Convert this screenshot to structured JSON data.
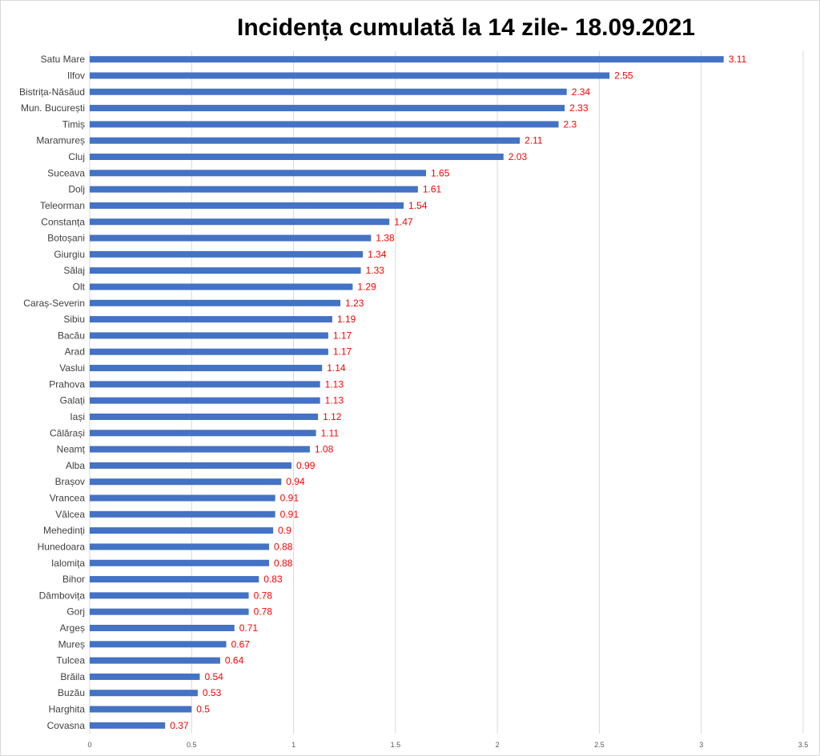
{
  "chart_data": {
    "type": "bar",
    "orientation": "horizontal",
    "title": "Incidența cumulată la 14 zile- 18.09.2021",
    "categories": [
      "Satu Mare",
      "Ilfov",
      "Bistrița-Năsăud",
      "Mun. București",
      "Timiș",
      "Maramureș",
      "Cluj",
      "Suceava",
      "Dolj",
      "Teleorman",
      "Constanța",
      "Botoșani",
      "Giurgiu",
      "Sălaj",
      "Olt",
      "Caraș-Severin",
      "Sibiu",
      "Bacău",
      "Arad",
      "Vaslui",
      "Prahova",
      "Galați",
      "Iași",
      "Călărași",
      "Neamț",
      "Alba",
      "Brașov",
      "Vrancea",
      "Vâlcea",
      "Mehedinți",
      "Hunedoara",
      "Ialomița",
      "Bihor",
      "Dâmbovița",
      "Gorj",
      "Argeș",
      "Mureș",
      "Tulcea",
      "Brăila",
      "Buzău",
      "Harghita",
      "Covasna"
    ],
    "values": [
      3.11,
      2.55,
      2.34,
      2.33,
      2.3,
      2.11,
      2.03,
      1.65,
      1.61,
      1.54,
      1.47,
      1.38,
      1.34,
      1.33,
      1.29,
      1.23,
      1.19,
      1.17,
      1.17,
      1.14,
      1.13,
      1.13,
      1.12,
      1.11,
      1.08,
      0.99,
      0.94,
      0.91,
      0.91,
      0.9,
      0.88,
      0.88,
      0.83,
      0.78,
      0.78,
      0.71,
      0.67,
      0.64,
      0.54,
      0.53,
      0.5,
      0.37
    ],
    "value_labels": [
      "3.11",
      "2.55",
      "2.34",
      "2.33",
      "2.3",
      "2.11",
      "2.03",
      "1.65",
      "1.61",
      "1.54",
      "1.47",
      "1.38",
      "1.34",
      "1.33",
      "1.29",
      "1.23",
      "1.19",
      "1.17",
      "1.17",
      "1.14",
      "1.13",
      "1.13",
      "1.12",
      "1.11",
      "1.08",
      "0.99",
      "0.94",
      "0.91",
      "0.91",
      "0.9",
      "0.88",
      "0.88",
      "0.83",
      "0.78",
      "0.78",
      "0.71",
      "0.67",
      "0.64",
      "0.54",
      "0.53",
      "0.5",
      "0.37"
    ],
    "xticks": [
      "0",
      "0.5",
      "1",
      "1.5",
      "2",
      "2.5",
      "3",
      "3.5"
    ],
    "xlim": [
      0,
      3.5
    ],
    "grid": true,
    "bar_color": "#4472c4",
    "label_color": "#ff0000",
    "xlabel": "",
    "ylabel": ""
  }
}
